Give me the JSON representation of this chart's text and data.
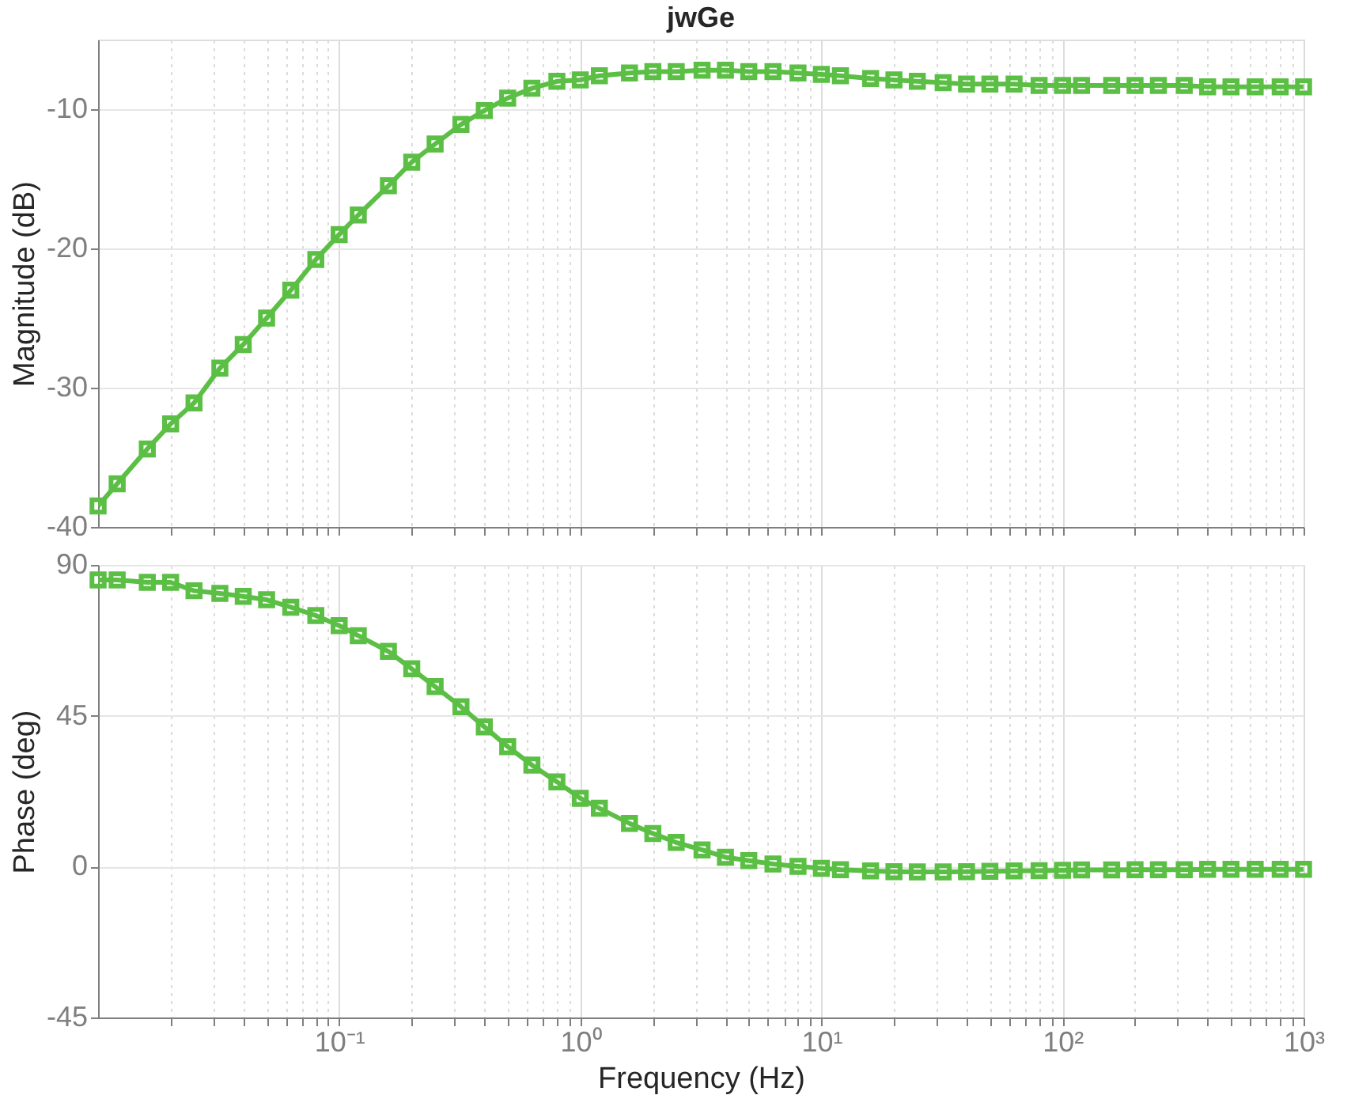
{
  "chart_data": [
    {
      "type": "line",
      "title": "jwGe",
      "ylabel": "Magnitude (dB)",
      "marker": "square",
      "grid": true,
      "log": "x",
      "tick_labels": "y",
      "x": [
        0.01,
        0.012,
        0.016,
        0.02,
        0.025,
        0.032,
        0.04,
        0.05,
        0.063,
        0.08,
        0.1,
        0.12,
        0.16,
        0.2,
        0.25,
        0.32,
        0.4,
        0.5,
        0.63,
        0.8,
        1,
        1.2,
        1.6,
        2,
        2.5,
        3.2,
        4,
        5,
        6.3,
        8,
        10,
        12,
        16,
        20,
        25,
        32,
        40,
        50,
        63,
        80,
        100,
        120,
        160,
        200,
        250,
        320,
        400,
        500,
        630,
        800,
        1000
      ],
      "series": [
        {
          "color": "#5cbf45",
          "values": [
            -38.5,
            -36.9,
            -34.4,
            -32.6,
            -31.1,
            -28.6,
            -26.9,
            -25.0,
            -23.0,
            -20.8,
            -19.0,
            -17.6,
            -15.5,
            -13.8,
            -12.5,
            -11.1,
            -10.1,
            -9.2,
            -8.5,
            -8.0,
            -7.9,
            -7.6,
            -7.4,
            -7.3,
            -7.3,
            -7.2,
            -7.2,
            -7.3,
            -7.3,
            -7.4,
            -7.5,
            -7.6,
            -7.8,
            -7.9,
            -8.0,
            -8.1,
            -8.2,
            -8.2,
            -8.2,
            -8.3,
            -8.3,
            -8.3,
            -8.3,
            -8.3,
            -8.3,
            -8.3,
            -8.4,
            -8.4,
            -8.4,
            -8.4,
            -8.4
          ]
        }
      ],
      "xlim": [
        0.01,
        1000
      ],
      "xticks": [
        {
          "value": 0.02,
          "label": null
        },
        {
          "value": 0.03,
          "label": null
        },
        {
          "value": 0.04,
          "label": null
        },
        {
          "value": 0.05,
          "label": null
        },
        {
          "value": 0.06,
          "label": null
        },
        {
          "value": 0.07,
          "label": null
        },
        {
          "value": 0.08,
          "label": null
        },
        {
          "value": 0.09,
          "label": null
        },
        {
          "value": 0.1,
          "label": null
        },
        {
          "value": 0.2,
          "label": null
        },
        {
          "value": 0.3,
          "label": null
        },
        {
          "value": 0.4,
          "label": null
        },
        {
          "value": 0.5,
          "label": null
        },
        {
          "value": 0.6,
          "label": null
        },
        {
          "value": 0.7,
          "label": null
        },
        {
          "value": 0.8,
          "label": null
        },
        {
          "value": 0.9,
          "label": null
        },
        {
          "value": 1,
          "label": null
        },
        {
          "value": 2,
          "label": null
        },
        {
          "value": 3,
          "label": null
        },
        {
          "value": 4,
          "label": null
        },
        {
          "value": 5,
          "label": null
        },
        {
          "value": 6,
          "label": null
        },
        {
          "value": 7,
          "label": null
        },
        {
          "value": 8,
          "label": null
        },
        {
          "value": 9,
          "label": null
        },
        {
          "value": 10,
          "label": null
        },
        {
          "value": 20,
          "label": null
        },
        {
          "value": 30,
          "label": null
        },
        {
          "value": 40,
          "label": null
        },
        {
          "value": 50,
          "label": null
        },
        {
          "value": 60,
          "label": null
        },
        {
          "value": 70,
          "label": null
        },
        {
          "value": 80,
          "label": null
        },
        {
          "value": 90,
          "label": null
        },
        {
          "value": 100,
          "label": null
        },
        {
          "value": 200,
          "label": null
        },
        {
          "value": 300,
          "label": null
        },
        {
          "value": 400,
          "label": null
        },
        {
          "value": 500,
          "label": null
        },
        {
          "value": 600,
          "label": null
        },
        {
          "value": 700,
          "label": null
        },
        {
          "value": 800,
          "label": null
        },
        {
          "value": 900,
          "label": null
        },
        {
          "value": 1000,
          "label": null
        }
      ],
      "ylim": [
        -40,
        -5
      ],
      "yticks": [
        -40,
        -30,
        -20,
        -10
      ]
    },
    {
      "type": "line",
      "xlabel": "Frequency  (Hz)",
      "ylabel": "Phase (deg)",
      "marker": "square",
      "grid": true,
      "log": "x",
      "x": [
        0.01,
        0.012,
        0.016,
        0.02,
        0.025,
        0.032,
        0.04,
        0.05,
        0.063,
        0.08,
        0.1,
        0.12,
        0.16,
        0.2,
        0.25,
        0.32,
        0.4,
        0.5,
        0.63,
        0.8,
        1,
        1.2,
        1.6,
        2,
        2.5,
        3.2,
        4,
        5,
        6.3,
        8,
        10,
        12,
        16,
        20,
        25,
        32,
        40,
        50,
        63,
        80,
        100,
        120,
        160,
        200,
        250,
        320,
        400,
        500,
        630,
        800,
        1000
      ],
      "series": [
        {
          "color": "#5cbf45",
          "values": [
            85.5,
            85.5,
            84.8,
            84.8,
            82.3,
            81.5,
            80.6,
            79.6,
            77.4,
            74.9,
            71.9,
            68.9,
            64.2,
            59.0,
            53.7,
            47.7,
            41.7,
            35.8,
            30.3,
            25.3,
            20.4,
            17.4,
            12.9,
            9.9,
            7.2,
            5.0,
            2.8,
            1.8,
            0.8,
            0.1,
            -0.5,
            -0.9,
            -1.3,
            -1.5,
            -1.6,
            -1.6,
            -1.5,
            -1.4,
            -1.3,
            -1.2,
            -1.1,
            -1.0,
            -1.0,
            -0.9,
            -0.9,
            -0.9,
            -0.8,
            -0.8,
            -0.8,
            -0.8,
            -0.8
          ]
        }
      ],
      "xlim": [
        0.01,
        1000
      ],
      "xticks": [
        {
          "value": 0.02,
          "label": null
        },
        {
          "value": 0.03,
          "label": null
        },
        {
          "value": 0.04,
          "label": null
        },
        {
          "value": 0.05,
          "label": null
        },
        {
          "value": 0.06,
          "label": null
        },
        {
          "value": 0.07,
          "label": null
        },
        {
          "value": 0.08,
          "label": null
        },
        {
          "value": 0.09,
          "label": null
        },
        {
          "value": 0.1,
          "label": "10⁻¹"
        },
        {
          "value": 0.2,
          "label": null
        },
        {
          "value": 0.3,
          "label": null
        },
        {
          "value": 0.4,
          "label": null
        },
        {
          "value": 0.5,
          "label": null
        },
        {
          "value": 0.6,
          "label": null
        },
        {
          "value": 0.7,
          "label": null
        },
        {
          "value": 0.8,
          "label": null
        },
        {
          "value": 0.9,
          "label": null
        },
        {
          "value": 1,
          "label": "10⁰"
        },
        {
          "value": 2,
          "label": null
        },
        {
          "value": 3,
          "label": null
        },
        {
          "value": 4,
          "label": null
        },
        {
          "value": 5,
          "label": null
        },
        {
          "value": 6,
          "label": null
        },
        {
          "value": 7,
          "label": null
        },
        {
          "value": 8,
          "label": null
        },
        {
          "value": 9,
          "label": null
        },
        {
          "value": 10,
          "label": "10¹"
        },
        {
          "value": 20,
          "label": null
        },
        {
          "value": 30,
          "label": null
        },
        {
          "value": 40,
          "label": null
        },
        {
          "value": 50,
          "label": null
        },
        {
          "value": 60,
          "label": null
        },
        {
          "value": 70,
          "label": null
        },
        {
          "value": 80,
          "label": null
        },
        {
          "value": 90,
          "label": null
        },
        {
          "value": 100,
          "label": "10²"
        },
        {
          "value": 200,
          "label": null
        },
        {
          "value": 300,
          "label": null
        },
        {
          "value": 400,
          "label": null
        },
        {
          "value": 500,
          "label": null
        },
        {
          "value": 600,
          "label": null
        },
        {
          "value": 700,
          "label": null
        },
        {
          "value": 800,
          "label": null
        },
        {
          "value": 900,
          "label": null
        },
        {
          "value": 1000,
          "label": "10³"
        }
      ],
      "ylim": [
        -45,
        90
      ],
      "yticks": [
        -45,
        0,
        45,
        90
      ]
    }
  ]
}
